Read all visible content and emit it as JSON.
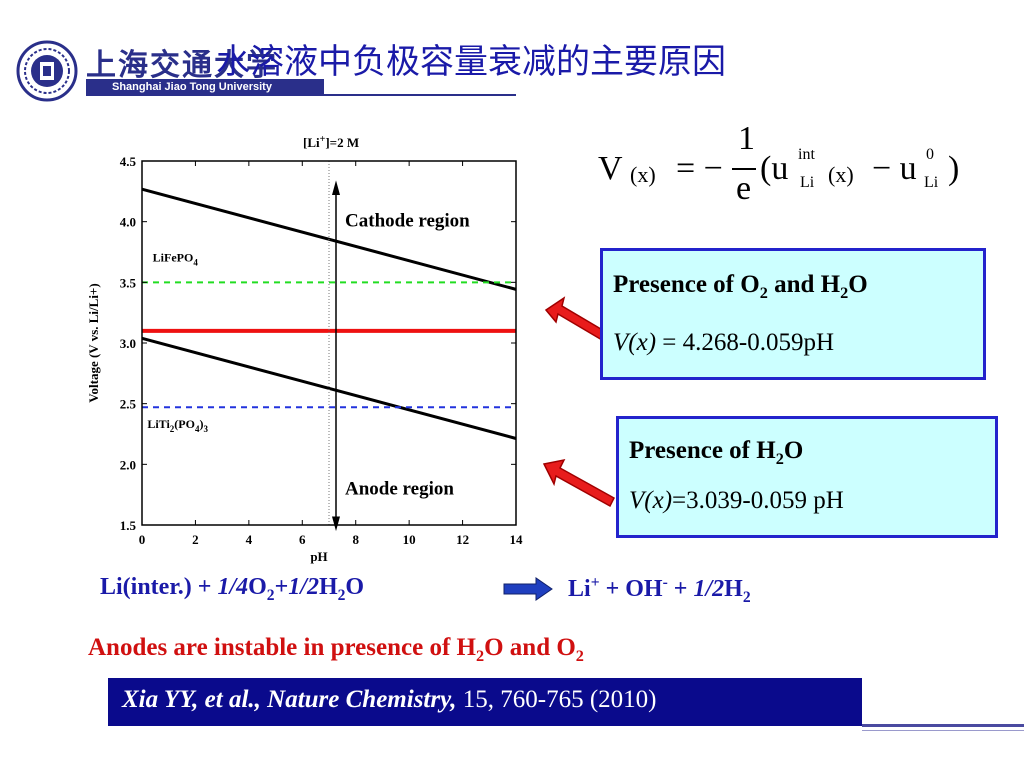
{
  "header": {
    "logo_cn": "上海交通大学",
    "logo_en": "Shanghai Jiao Tong University",
    "title": "水溶液中负极容量衰减的主要原因"
  },
  "formula": {
    "v": "V",
    "x_arg": "(x)",
    "equals": "= −",
    "num": "1",
    "den": "e",
    "open": "(u",
    "sup_int": "int",
    "sub_li1": "Li",
    "x_arg2": "(x)",
    "minus_u": "− u",
    "sup_0": "0",
    "sub_li2": "Li",
    "close": ")"
  },
  "box1": {
    "title_a": "Presence of O",
    "title_sub": "2",
    "title_b": " and H",
    "title_sub2": "2",
    "title_c": "O",
    "eq_lhs": "V(x)",
    "eq_rhs": " = 4.268-0.059pH"
  },
  "box2": {
    "title_a": "Presence of H",
    "title_sub": "2",
    "title_c": "O",
    "eq_lhs": "V(x)",
    "eq_rhs": "=3.039-0.059 pH"
  },
  "reaction": {
    "lhs_a": "Li(inter.) + ",
    "lhs_frac1": "1/4",
    "lhs_o2": "O",
    "lhs_o2_sub": "2",
    "lhs_plus": "+",
    "lhs_frac2": "1/2",
    "lhs_h2o": "H",
    "lhs_h2o_sub": "2",
    "lhs_h2o_end": "O",
    "rhs_li": "Li",
    "rhs_li_sup": "+",
    "rhs_oh": " + OH",
    "rhs_oh_sup": "-",
    "rhs_plus": " + ",
    "rhs_frac": "1/2",
    "rhs_h2": "H",
    "rhs_h2_sub": "2"
  },
  "warning": {
    "a": "Anodes are instable in presence of H",
    "sub1": "2",
    "b": "O and O",
    "sub2": "2"
  },
  "reference": {
    "authors": "Xia YY, et al., Nature Chemistry,",
    "rest": " 15, 760-765 (2010)"
  },
  "colors": {
    "title_blue": "#1a1aa8",
    "box_fill": "#ccffff",
    "box_border": "#2323cc",
    "warning_red": "#d01010",
    "ref_bar": "#0a0a8c",
    "red_line": "#ee1111",
    "green_dash": "#22dd22",
    "blue_dash": "#2233dd"
  },
  "chart_data": {
    "type": "line",
    "title": "[Li+]=2 M",
    "xlabel": "pH",
    "ylabel": "Voltage (V vs. Li/Li+)",
    "xlim": [
      0,
      14
    ],
    "ylim": [
      1.5,
      4.5
    ],
    "xticks": [
      "0",
      "2",
      "4",
      "6",
      "8",
      "10",
      "12",
      "14"
    ],
    "yticks": [
      "1.5",
      "2.0",
      "2.5",
      "3.0",
      "3.5",
      "4.0",
      "4.5"
    ],
    "series": [
      {
        "x": [
          0,
          14
        ],
        "y": [
          4.268,
          3.442
        ],
        "style": "solid",
        "color": "#000000"
      },
      {
        "x": [
          0,
          14
        ],
        "y": [
          3.039,
          2.213
        ],
        "style": "solid",
        "color": "#000000"
      },
      {
        "name": "LiFePO4",
        "x": [
          0,
          14
        ],
        "y": [
          3.5,
          3.5
        ],
        "style": "dashed",
        "color": "#22dd22"
      },
      {
        "name": "LiTi2(PO4)3",
        "x": [
          0,
          14
        ],
        "y": [
          2.47,
          2.47
        ],
        "style": "dashed",
        "color": "#2233dd"
      },
      {
        "x": [
          0,
          14
        ],
        "y": [
          3.1,
          3.1
        ],
        "style": "solid",
        "color": "#ee1111"
      }
    ],
    "vline_ph": 7,
    "annotations": {
      "cathode": "Cathode region",
      "anode": "Anode region",
      "lifepo4": "LiFePO",
      "lifepo4_sub": "4",
      "liti_a": "LiTi",
      "liti_sub1": "2",
      "liti_b": "(PO",
      "liti_sub2": "4",
      "liti_c": ")",
      "liti_sub3": "3",
      "title_a": "[Li",
      "title_sup": "+",
      "title_b": "]=2 M"
    }
  }
}
